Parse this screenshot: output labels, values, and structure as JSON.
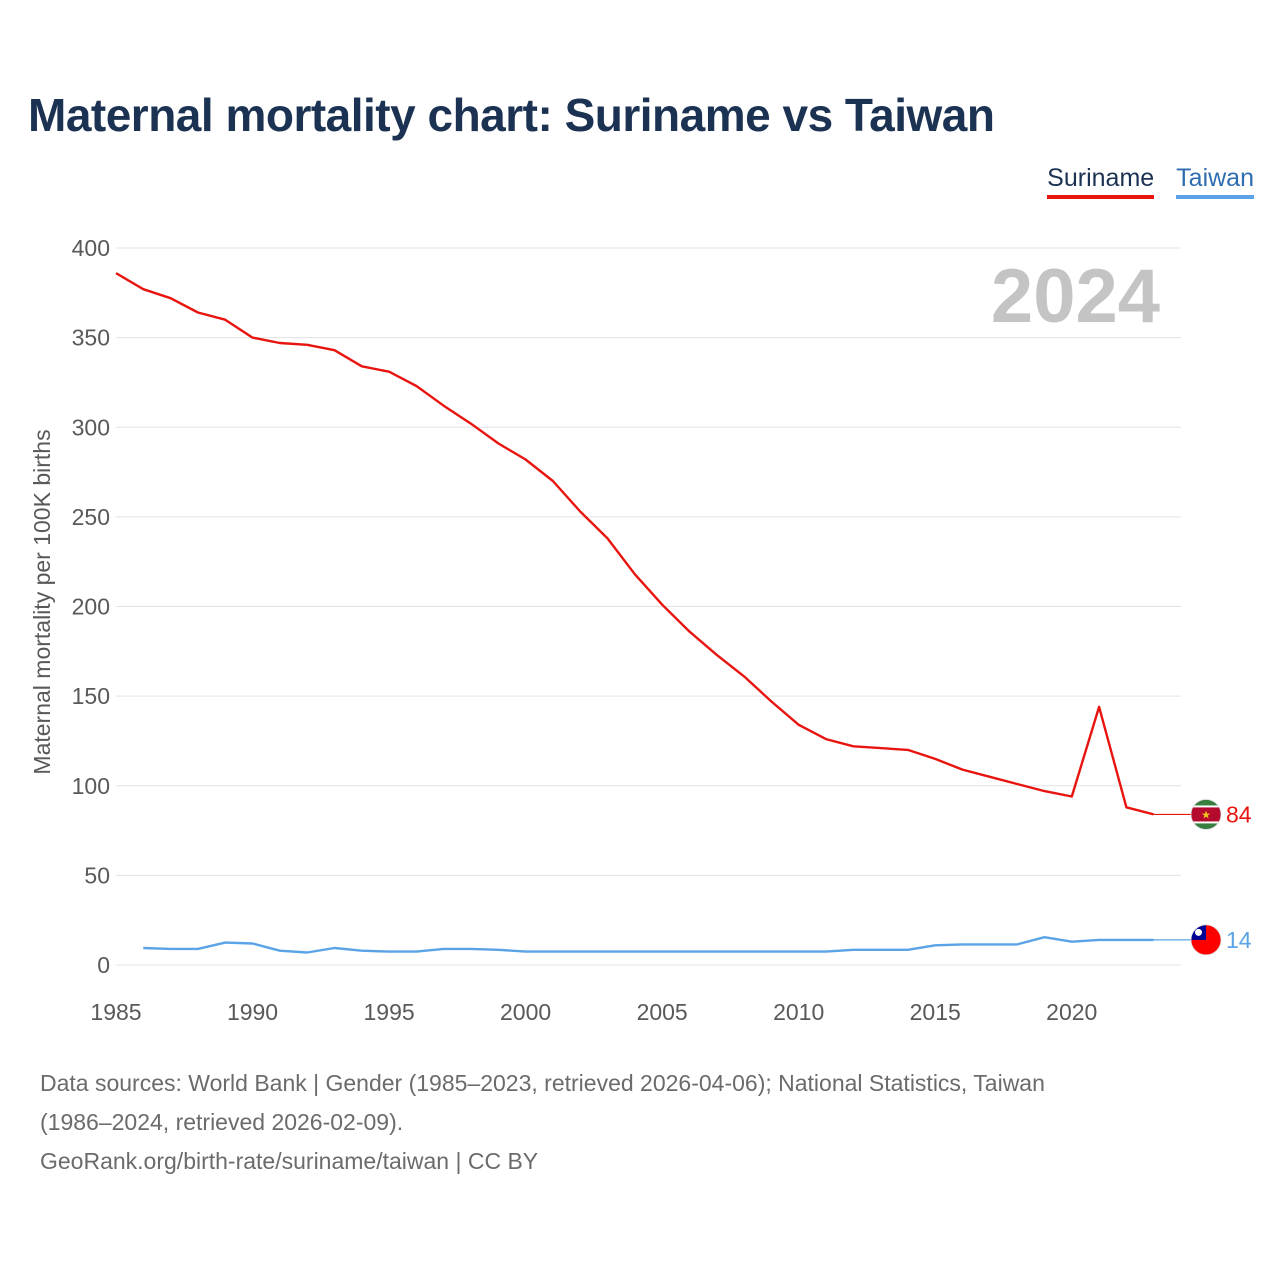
{
  "title": "Maternal mortality chart: Suriname vs Taiwan",
  "legend": [
    {
      "name": "Suriname",
      "color": "#e8140f"
    },
    {
      "name": "Taiwan",
      "color": "#5aa3e6"
    }
  ],
  "year_label": "2024",
  "source": {
    "line1": "Data sources: World Bank | Gender (1985–2023, retrieved 2026-04-06); National Statistics, Taiwan",
    "line2": "(1986–2024, retrieved 2026-02-09).",
    "line3": "GeoRank.org/birth-rate/suriname/taiwan | CC BY"
  },
  "chart_data": {
    "type": "line",
    "title": "Maternal mortality chart: Suriname vs Taiwan",
    "xlabel": "",
    "ylabel": "Maternal mortality per 100K births",
    "xlim": [
      1985,
      2024
    ],
    "ylim": [
      0,
      400
    ],
    "x_ticks": [
      1985,
      1990,
      1995,
      2000,
      2005,
      2010,
      2015,
      2020
    ],
    "y_ticks": [
      0,
      50,
      100,
      150,
      200,
      250,
      300,
      350,
      400
    ],
    "grid": "horizontal",
    "legend_position": "top-right",
    "series": [
      {
        "name": "Suriname",
        "color": "#e8140f",
        "flag": "suriname-flag",
        "end_label": "84",
        "x": [
          1985,
          1986,
          1987,
          1988,
          1989,
          1990,
          1991,
          1992,
          1993,
          1994,
          1995,
          1996,
          1997,
          1998,
          1999,
          2000,
          2001,
          2002,
          2003,
          2004,
          2005,
          2006,
          2007,
          2008,
          2009,
          2010,
          2011,
          2012,
          2013,
          2014,
          2015,
          2016,
          2017,
          2018,
          2019,
          2020,
          2021,
          2022,
          2023,
          2024
        ],
        "values": [
          386,
          377,
          372,
          364,
          360,
          350,
          347,
          346,
          343,
          334,
          331,
          323,
          312,
          302,
          291,
          282,
          270,
          253,
          238,
          218,
          201,
          186,
          173,
          161,
          147,
          134,
          126,
          122,
          121,
          120,
          115,
          109,
          105,
          101,
          97,
          94,
          144,
          88,
          84,
          84
        ]
      },
      {
        "name": "Taiwan",
        "color": "#5aa3e6",
        "flag": "taiwan-flag",
        "end_label": "14",
        "x": [
          1986,
          1987,
          1988,
          1989,
          1990,
          1991,
          1992,
          1993,
          1994,
          1995,
          1996,
          1997,
          1998,
          1999,
          2000,
          2001,
          2002,
          2003,
          2004,
          2005,
          2006,
          2007,
          2008,
          2009,
          2010,
          2011,
          2012,
          2013,
          2014,
          2015,
          2016,
          2017,
          2018,
          2019,
          2020,
          2021,
          2022,
          2023,
          2024
        ],
        "values": [
          9.5,
          9,
          9,
          12.5,
          12,
          8,
          7,
          9.5,
          8,
          7.5,
          7.5,
          9,
          9,
          8.5,
          7.5,
          7.5,
          7.5,
          7.5,
          7.5,
          7.5,
          7.5,
          7.5,
          7.5,
          7.5,
          7.5,
          7.5,
          8.5,
          8.5,
          8.5,
          11,
          11.5,
          11.5,
          11.5,
          15.5,
          13,
          14,
          14,
          14,
          14
        ]
      }
    ]
  }
}
